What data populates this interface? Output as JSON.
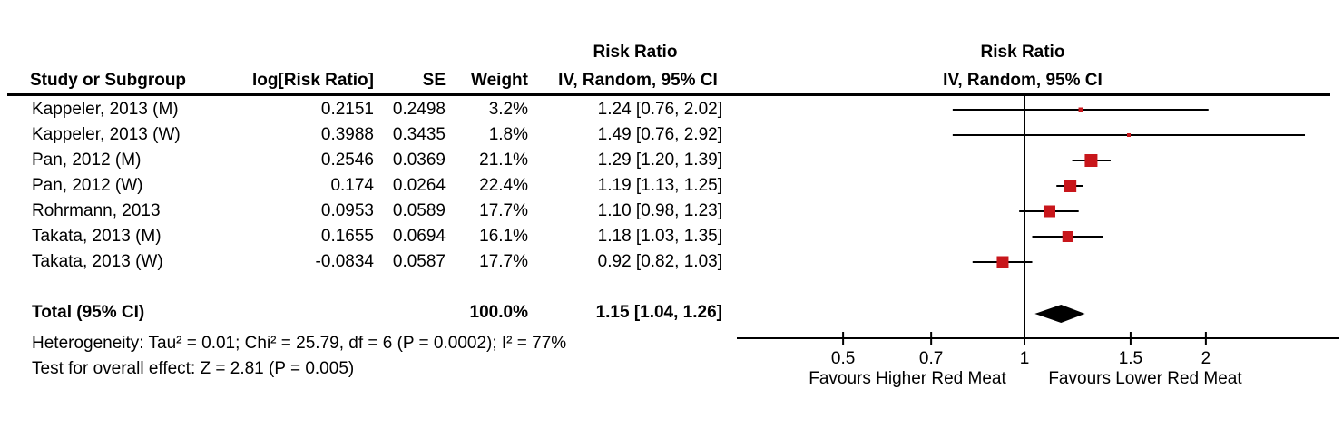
{
  "figure": {
    "columns": {
      "study": "Study or Subgroup",
      "log_rr": "log[Risk Ratio]",
      "se": "SE",
      "weight": "Weight"
    },
    "effect_header": {
      "line1": "Risk Ratio",
      "line2": "IV, Random, 95% CI"
    },
    "plot_header": {
      "line1": "Risk Ratio",
      "line2": "IV, Random, 95% CI"
    }
  },
  "chart_data": {
    "type": "forest",
    "x_scale": "log",
    "title": "Risk Ratio, IV, Random, 95% CI",
    "studies": [
      {
        "name": "Kappeler, 2013 (M)",
        "log_rr": "0.2151",
        "se": "0.2498",
        "weight": "3.2%",
        "weight_pct": 3.2,
        "rr": 1.24,
        "ci_low": 0.76,
        "ci_high": 2.02,
        "ci_text": "1.24 [0.76, 2.02]"
      },
      {
        "name": "Kappeler, 2013 (W)",
        "log_rr": "0.3988",
        "se": "0.3435",
        "weight": "1.8%",
        "weight_pct": 1.8,
        "rr": 1.49,
        "ci_low": 0.76,
        "ci_high": 2.92,
        "ci_text": "1.49 [0.76, 2.92]"
      },
      {
        "name": "Pan, 2012 (M)",
        "log_rr": "0.2546",
        "se": "0.0369",
        "weight": "21.1%",
        "weight_pct": 21.1,
        "rr": 1.29,
        "ci_low": 1.2,
        "ci_high": 1.39,
        "ci_text": "1.29 [1.20, 1.39]"
      },
      {
        "name": "Pan, 2012 (W)",
        "log_rr": "0.174",
        "se": "0.0264",
        "weight": "22.4%",
        "weight_pct": 22.4,
        "rr": 1.19,
        "ci_low": 1.13,
        "ci_high": 1.25,
        "ci_text": "1.19 [1.13, 1.25]"
      },
      {
        "name": "Rohrmann, 2013",
        "log_rr": "0.0953",
        "se": "0.0589",
        "weight": "17.7%",
        "weight_pct": 17.7,
        "rr": 1.1,
        "ci_low": 0.98,
        "ci_high": 1.23,
        "ci_text": "1.10 [0.98, 1.23]"
      },
      {
        "name": "Takata, 2013 (M)",
        "log_rr": "0.1655",
        "se": "0.0694",
        "weight": "16.1%",
        "weight_pct": 16.1,
        "rr": 1.18,
        "ci_low": 1.03,
        "ci_high": 1.35,
        "ci_text": "1.18 [1.03, 1.35]"
      },
      {
        "name": "Takata, 2013 (W)",
        "log_rr": "-0.0834",
        "se": "0.0587",
        "weight": "17.7%",
        "weight_pct": 17.7,
        "rr": 0.92,
        "ci_low": 0.82,
        "ci_high": 1.03,
        "ci_text": "0.92 [0.82, 1.03]"
      }
    ],
    "total": {
      "label": "Total (95% CI)",
      "weight": "100.0%",
      "weight_pct": 100.0,
      "rr": 1.15,
      "ci_low": 1.04,
      "ci_high": 1.26,
      "ci_text": "1.15 [1.04, 1.26]"
    },
    "axis": {
      "ticks": [
        0.5,
        0.7,
        1,
        1.5,
        2
      ],
      "tick_labels": [
        "0.5",
        "0.7",
        "1",
        "1.5",
        "2"
      ],
      "ref_line": 1,
      "xlim": [
        0.33,
        3.33
      ],
      "favours_left": "Favours Higher Red Meat",
      "favours_right": "Favours Lower Red Meat"
    },
    "footnotes": {
      "heterogeneity": "Heterogeneity: Tau² = 0.01; Chi² = 25.79, df = 6 (P = 0.0002); I² = 77%",
      "overall_effect": "Test for overall effect: Z = 2.81 (P = 0.005)"
    },
    "colors": {
      "marker": "#C8161B",
      "diamond": "#000000",
      "line": "#000000"
    }
  }
}
